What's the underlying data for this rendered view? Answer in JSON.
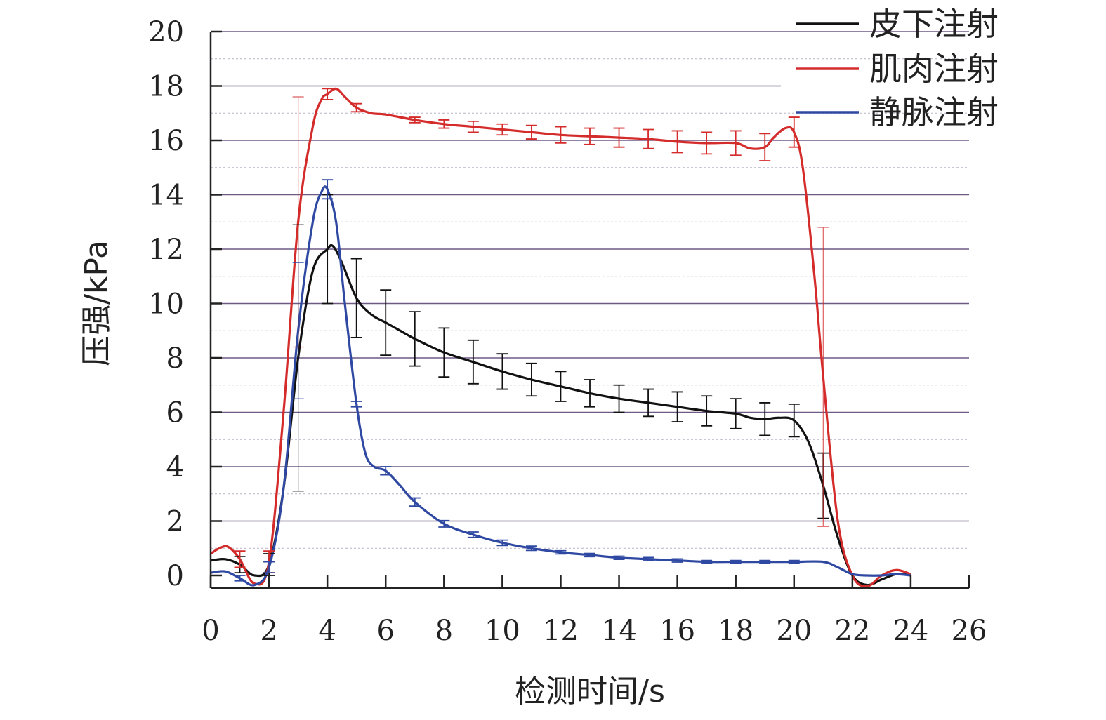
{
  "chart_data": {
    "type": "line",
    "title": "",
    "xlabel": "检测时间/s",
    "ylabel": "压强/kPa",
    "xlim": [
      0,
      26
    ],
    "ylim": [
      0,
      20
    ],
    "xticks": [
      "0",
      "2",
      "4",
      "6",
      "8",
      "10",
      "12",
      "14",
      "16",
      "18",
      "20",
      "22",
      "24",
      "26"
    ],
    "yticks": [
      "0",
      "2",
      "4",
      "6",
      "8",
      "10",
      "12",
      "14",
      "16",
      "18",
      "20"
    ],
    "grid": "horizontal",
    "legend_position": "top-right",
    "series": [
      {
        "name": "皮下注射",
        "color": "#111111",
        "x": [
          0,
          0.5,
          1,
          1.5,
          2,
          2.5,
          3,
          3.5,
          4,
          4.2,
          4.5,
          5,
          5.5,
          6,
          6.5,
          7,
          8,
          9,
          10,
          11,
          12,
          13,
          14,
          15,
          16,
          17,
          18,
          18.5,
          19,
          19.5,
          20,
          20.5,
          21,
          21.5,
          22,
          22.5,
          23,
          23.5,
          24
        ],
        "values": [
          0.55,
          0.6,
          0.4,
          0.0,
          0.4,
          3.2,
          8.0,
          11.2,
          12.0,
          12.1,
          11.5,
          10.2,
          9.6,
          9.3,
          9.0,
          8.7,
          8.2,
          7.85,
          7.5,
          7.2,
          6.95,
          6.7,
          6.5,
          6.35,
          6.2,
          6.05,
          5.95,
          5.8,
          5.75,
          5.8,
          5.7,
          4.9,
          3.3,
          1.4,
          0.0,
          -0.35,
          -0.15,
          0.05,
          0.05
        ],
        "errorbars": [
          {
            "x": 1,
            "err": 0.3
          },
          {
            "x": 2,
            "err": 0.4
          },
          {
            "x": 3,
            "err": 4.9
          },
          {
            "x": 4,
            "err": 2.0
          },
          {
            "x": 5,
            "err": 1.45
          },
          {
            "x": 6,
            "err": 1.2
          },
          {
            "x": 7,
            "err": 1.0
          },
          {
            "x": 8,
            "err": 0.9
          },
          {
            "x": 9,
            "err": 0.8
          },
          {
            "x": 10,
            "err": 0.65
          },
          {
            "x": 11,
            "err": 0.6
          },
          {
            "x": 12,
            "err": 0.55
          },
          {
            "x": 13,
            "err": 0.5
          },
          {
            "x": 14,
            "err": 0.5
          },
          {
            "x": 15,
            "err": 0.5
          },
          {
            "x": 16,
            "err": 0.55
          },
          {
            "x": 17,
            "err": 0.55
          },
          {
            "x": 18,
            "err": 0.55
          },
          {
            "x": 19,
            "err": 0.6
          },
          {
            "x": 20,
            "err": 0.6
          },
          {
            "x": 21,
            "err": 1.2
          }
        ]
      },
      {
        "name": "肌肉注射",
        "color": "#d42b2b",
        "x": [
          0,
          0.3,
          0.6,
          1,
          1.5,
          2,
          2.5,
          3,
          3.5,
          3.8,
          4,
          4.3,
          4.6,
          5,
          5.5,
          6,
          7,
          8,
          9,
          10,
          11,
          12,
          13,
          14,
          15,
          16,
          17,
          18,
          18.5,
          19,
          19.3,
          19.7,
          20,
          20.3,
          20.7,
          21,
          21.5,
          22,
          22.5,
          23,
          23.5,
          24
        ],
        "values": [
          0.8,
          1.0,
          1.05,
          0.6,
          -0.3,
          0.5,
          6.0,
          13.0,
          16.5,
          17.5,
          17.7,
          17.9,
          17.6,
          17.2,
          17.0,
          16.95,
          16.75,
          16.6,
          16.5,
          16.4,
          16.3,
          16.2,
          16.15,
          16.1,
          16.05,
          15.95,
          15.9,
          15.9,
          15.7,
          15.75,
          16.1,
          16.45,
          16.3,
          15.0,
          11.0,
          7.3,
          2.0,
          0.0,
          -0.4,
          0.0,
          0.2,
          0.05
        ],
        "errorbars": [
          {
            "x": 1,
            "err": 0.3
          },
          {
            "x": 2,
            "err": 0.4
          },
          {
            "x": 3,
            "err": 4.6
          },
          {
            "x": 4,
            "err": 0.2
          },
          {
            "x": 5,
            "err": 0.15
          },
          {
            "x": 7,
            "err": 0.1
          },
          {
            "x": 8,
            "err": 0.15
          },
          {
            "x": 9,
            "err": 0.2
          },
          {
            "x": 10,
            "err": 0.2
          },
          {
            "x": 11,
            "err": 0.25
          },
          {
            "x": 12,
            "err": 0.3
          },
          {
            "x": 13,
            "err": 0.3
          },
          {
            "x": 14,
            "err": 0.35
          },
          {
            "x": 15,
            "err": 0.35
          },
          {
            "x": 16,
            "err": 0.4
          },
          {
            "x": 17,
            "err": 0.4
          },
          {
            "x": 18,
            "err": 0.45
          },
          {
            "x": 19,
            "err": 0.5
          },
          {
            "x": 20,
            "err": 0.55
          },
          {
            "x": 21,
            "err": 5.5
          }
        ]
      },
      {
        "name": "静脉注射",
        "color": "#2f49a3",
        "x": [
          0,
          0.5,
          1,
          1.5,
          2,
          2.5,
          3,
          3.5,
          3.8,
          4,
          4.3,
          4.6,
          5,
          5.3,
          5.6,
          6,
          6.5,
          7,
          8,
          9,
          10,
          11,
          12,
          13,
          14,
          15,
          16,
          17,
          18,
          19,
          20,
          21,
          21.5,
          22,
          22.5,
          23,
          23.5,
          24
        ],
        "values": [
          0.1,
          0.15,
          -0.1,
          -0.35,
          0.3,
          3.2,
          9.0,
          13.0,
          14.1,
          14.2,
          13.0,
          10.0,
          6.3,
          4.5,
          4.0,
          3.85,
          3.3,
          2.7,
          1.9,
          1.5,
          1.2,
          1.0,
          0.85,
          0.75,
          0.65,
          0.6,
          0.55,
          0.5,
          0.5,
          0.5,
          0.5,
          0.5,
          0.3,
          0.05,
          0.0,
          0.0,
          0.05,
          0.0
        ],
        "errorbars": [
          {
            "x": 1,
            "err": 0.1
          },
          {
            "x": 2,
            "err": 0.2
          },
          {
            "x": 3,
            "err": 2.5
          },
          {
            "x": 4,
            "err": 0.35
          },
          {
            "x": 5,
            "err": 0.1
          },
          {
            "x": 6,
            "err": 0.15
          },
          {
            "x": 7,
            "err": 0.15
          },
          {
            "x": 8,
            "err": 0.12
          },
          {
            "x": 9,
            "err": 0.1
          },
          {
            "x": 10,
            "err": 0.1
          },
          {
            "x": 11,
            "err": 0.08
          },
          {
            "x": 12,
            "err": 0.06
          },
          {
            "x": 13,
            "err": 0.06
          },
          {
            "x": 14,
            "err": 0.06
          },
          {
            "x": 15,
            "err": 0.06
          },
          {
            "x": 16,
            "err": 0.06
          },
          {
            "x": 17,
            "err": 0.05
          },
          {
            "x": 18,
            "err": 0.05
          },
          {
            "x": 19,
            "err": 0.05
          },
          {
            "x": 20,
            "err": 0.05
          }
        ]
      }
    ]
  }
}
